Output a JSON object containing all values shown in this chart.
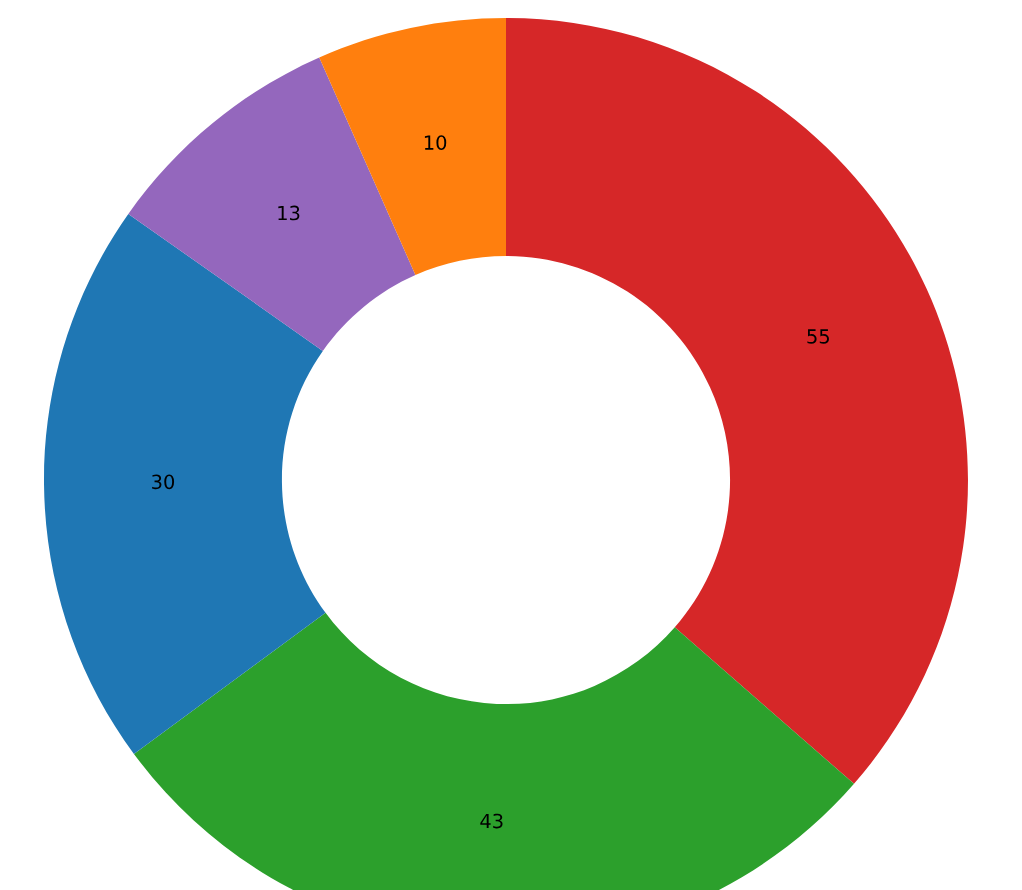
{
  "chart_data": {
    "type": "donut",
    "categories": [
      null,
      null,
      null,
      null,
      null
    ],
    "values": [
      55,
      43,
      30,
      13,
      10
    ],
    "colors": [
      "#d62728",
      "#2ca02c",
      "#1f77b4",
      "#9467bd",
      "#ff7f0e"
    ],
    "data_labels": true
  }
}
